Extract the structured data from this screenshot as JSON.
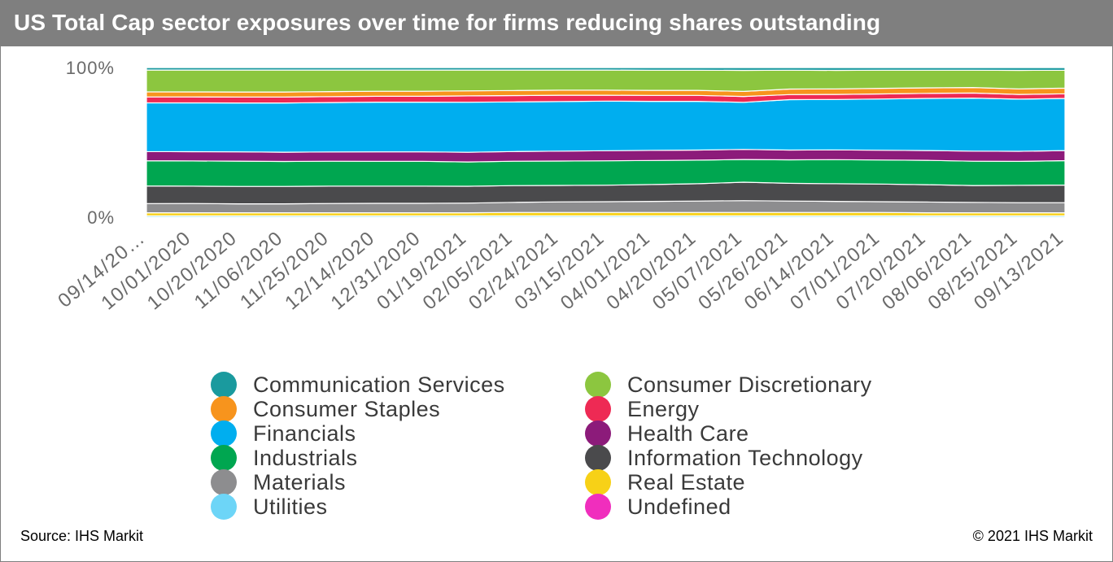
{
  "header": {
    "title": "US Total Cap sector exposures over time for firms reducing shares outstanding"
  },
  "footer": {
    "source": "Source: IHS Markit",
    "copyright": "© 2021 IHS Markit"
  },
  "chart_data": {
    "type": "area",
    "stacked": "percent",
    "title": "US Total Cap sector exposures over time for firms reducing shares outstanding",
    "xlabel": "",
    "ylabel": "",
    "ylim": [
      0,
      100
    ],
    "y_ticks": [
      "0%",
      "100%"
    ],
    "grid": false,
    "legend_position": "bottom",
    "categories": [
      "09/14/20…",
      "10/01/2020",
      "10/20/2020",
      "11/06/2020",
      "11/25/2020",
      "12/14/2020",
      "12/31/2020",
      "01/19/2021",
      "02/05/2021",
      "02/24/2021",
      "03/15/2021",
      "04/01/2021",
      "04/20/2021",
      "05/07/2021",
      "05/26/2021",
      "06/14/2021",
      "07/01/2021",
      "07/20/2021",
      "08/06/2021",
      "08/25/2021",
      "09/13/2021"
    ],
    "series": [
      {
        "name": "Utilities",
        "color": "#6dd5f7",
        "values": [
          0.8,
          0.8,
          0.8,
          0.8,
          0.8,
          0.8,
          0.8,
          0.8,
          0.8,
          0.8,
          0.8,
          0.8,
          0.8,
          0.8,
          0.8,
          0.8,
          0.8,
          0.8,
          0.8,
          0.8,
          0.8
        ]
      },
      {
        "name": "Real Estate",
        "color": "#f7d117",
        "values": [
          1.8,
          1.8,
          1.8,
          1.8,
          1.8,
          1.8,
          1.8,
          1.8,
          2.0,
          2.0,
          2.0,
          2.0,
          2.0,
          2.0,
          2.0,
          2.0,
          2.0,
          1.8,
          1.8,
          1.8,
          1.8
        ]
      },
      {
        "name": "Materials",
        "color": "#8d8d8f",
        "values": [
          5.5,
          5.5,
          5.3,
          5.3,
          5.5,
          5.6,
          5.6,
          5.8,
          6.0,
          6.3,
          6.4,
          6.6,
          6.8,
          7.0,
          6.8,
          6.6,
          6.4,
          6.4,
          6.2,
          6.0,
          6.0
        ]
      },
      {
        "name": "Information Technology",
        "color": "#4a4a4c",
        "values": [
          10.5,
          10.3,
          10.3,
          10.3,
          10.3,
          10.2,
          10.2,
          10.0,
          10.0,
          9.8,
          9.8,
          10.0,
          10.3,
          11.0,
          10.5,
          10.5,
          10.5,
          10.3,
          10.0,
          10.3,
          10.5
        ]
      },
      {
        "name": "Industrials",
        "color": "#00a650",
        "values": [
          15.0,
          15.0,
          15.0,
          14.8,
          14.8,
          14.8,
          14.8,
          14.5,
          14.5,
          14.5,
          14.5,
          14.3,
          14.0,
          13.5,
          14.0,
          14.3,
          14.3,
          14.5,
          14.5,
          14.3,
          14.5
        ]
      },
      {
        "name": "Health Care",
        "color": "#8c1b7a",
        "values": [
          5.5,
          5.5,
          5.5,
          5.5,
          5.5,
          5.6,
          5.6,
          5.8,
          5.8,
          5.9,
          6.0,
          6.0,
          6.0,
          6.0,
          5.8,
          5.8,
          5.8,
          5.8,
          6.0,
          6.0,
          6.0
        ]
      },
      {
        "name": "Financials",
        "color": "#00aeef",
        "values": [
          29.0,
          29.0,
          29.0,
          29.2,
          29.3,
          29.5,
          29.5,
          29.8,
          29.5,
          29.5,
          29.5,
          29.2,
          29.0,
          28.0,
          30.0,
          30.0,
          30.5,
          31.0,
          31.5,
          31.0,
          31.0
        ]
      },
      {
        "name": "Energy",
        "color": "#ee2a54",
        "values": [
          3.5,
          3.5,
          3.5,
          3.5,
          3.5,
          3.5,
          3.5,
          3.8,
          3.8,
          3.8,
          3.5,
          3.5,
          3.5,
          3.5,
          3.0,
          3.0,
          3.0,
          3.0,
          3.0,
          2.8,
          2.8
        ]
      },
      {
        "name": "Consumer Staples",
        "color": "#f7941d",
        "values": [
          3.0,
          3.0,
          3.0,
          3.0,
          3.0,
          3.0,
          3.0,
          3.0,
          3.0,
          3.0,
          3.0,
          3.0,
          3.0,
          3.0,
          3.3,
          3.3,
          3.3,
          3.3,
          3.3,
          3.3,
          3.3
        ]
      },
      {
        "name": "Consumer Discretionary",
        "color": "#8cc63f",
        "values": [
          13.0,
          13.0,
          13.0,
          13.0,
          12.8,
          12.6,
          12.6,
          12.4,
          12.2,
          12.0,
          12.0,
          12.0,
          12.0,
          12.5,
          11.2,
          11.0,
          10.8,
          10.5,
          10.3,
          11.0,
          10.7
        ]
      },
      {
        "name": "Communication Services",
        "color": "#1a9a9e",
        "values": [
          1.5,
          1.5,
          1.5,
          1.5,
          1.5,
          1.5,
          1.5,
          1.5,
          1.5,
          1.5,
          1.5,
          1.6,
          1.6,
          1.7,
          1.6,
          1.7,
          1.6,
          1.6,
          1.6,
          1.7,
          1.6
        ]
      },
      {
        "name": "Undefined",
        "color": "#f02ebd",
        "values": [
          0,
          0,
          0,
          0,
          0,
          0,
          0,
          0,
          0,
          0,
          0,
          0,
          0,
          0,
          0,
          0,
          0,
          0,
          0,
          0,
          0
        ]
      }
    ]
  },
  "legend": {
    "items": [
      {
        "label": "Communication Services",
        "color": "#1a9a9e"
      },
      {
        "label": "Consumer Discretionary",
        "color": "#8cc63f"
      },
      {
        "label": "Consumer Staples",
        "color": "#f7941d"
      },
      {
        "label": "Energy",
        "color": "#ee2a54"
      },
      {
        "label": "Financials",
        "color": "#00aeef"
      },
      {
        "label": "Health Care",
        "color": "#8c1b7a"
      },
      {
        "label": "Industrials",
        "color": "#00a650"
      },
      {
        "label": "Information Technology",
        "color": "#4a4a4c"
      },
      {
        "label": "Materials",
        "color": "#8d8d8f"
      },
      {
        "label": "Real Estate",
        "color": "#f7d117"
      },
      {
        "label": "Utilities",
        "color": "#6dd5f7"
      },
      {
        "label": "Undefined",
        "color": "#f02ebd"
      }
    ]
  }
}
